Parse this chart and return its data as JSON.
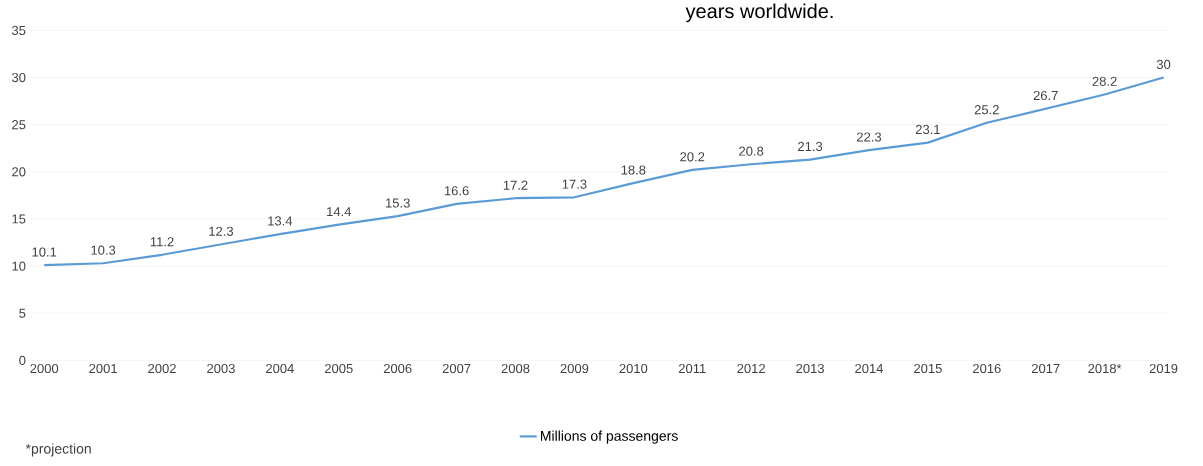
{
  "chart_data": {
    "type": "line",
    "title": "years worldwide.",
    "categories": [
      "2000",
      "2001",
      "2002",
      "2003",
      "2004",
      "2005",
      "2006",
      "2007",
      "2008",
      "2009",
      "2010",
      "2011",
      "2012",
      "2013",
      "2014",
      "2015",
      "2016",
      "2017",
      "2018*",
      "2019"
    ],
    "series": [
      {
        "name": "Millions of passengers",
        "color": "#5b9bd5",
        "values": [
          10.1,
          10.3,
          11.2,
          12.3,
          13.4,
          14.4,
          15.3,
          16.6,
          17.2,
          17.3,
          18.8,
          20.2,
          20.8,
          21.3,
          22.3,
          23.1,
          25.2,
          26.7,
          28.2,
          30
        ]
      }
    ],
    "ylim": [
      0,
      35
    ],
    "yticks": [
      0,
      5,
      10,
      15,
      20,
      25,
      30,
      35
    ],
    "grid": "y",
    "data_labels": true,
    "legend": "bottom",
    "marker": "none",
    "line_style": "solid",
    "annotations": [
      "*projection"
    ]
  }
}
